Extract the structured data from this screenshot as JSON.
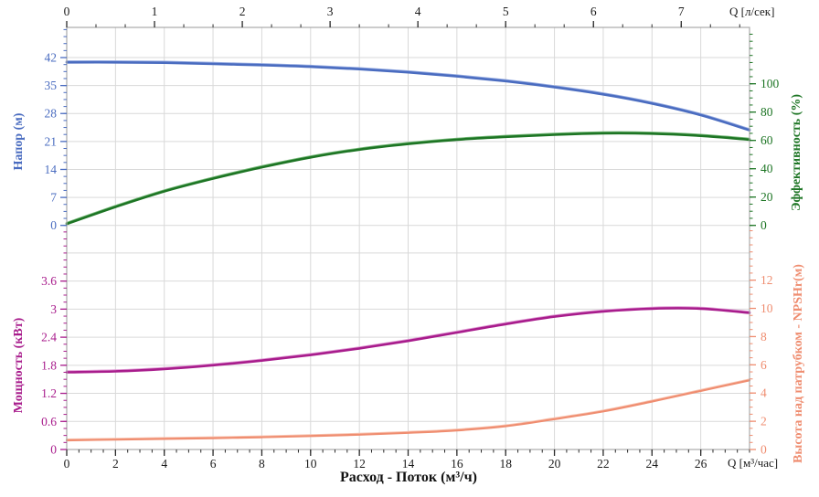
{
  "figure": {
    "background": "#ffffff",
    "grid_color": "#d9d9d9",
    "border_color": "#a9a9a9",
    "x_tick_color": "#2b2b2b"
  },
  "labels": {
    "q_top": "Q [л/сек]",
    "q_bottom": "Q [м³/час]",
    "x_title": "Расход - Поток (м³/ч)",
    "head_axis": "Напор (м)",
    "efficiency_axis": "Эффективность (%)",
    "power_axis": "Мощность (кВт)",
    "npsh_axis": "Высота над патрубком - NPSHr(м)"
  },
  "chart_data": {
    "type": "line",
    "x_axis_bottom": {
      "label": "Q [м³/час]",
      "title": "Расход - Поток (м³/ч)",
      "ticks": [
        0,
        2,
        4,
        6,
        8,
        10,
        12,
        14,
        16,
        18,
        20,
        22,
        24,
        26
      ],
      "minor_step": 0.5,
      "range": [
        0,
        28
      ],
      "unit": "м³/час"
    },
    "x_axis_top": {
      "label": "Q [л/сек]",
      "ticks": [
        0,
        1,
        2,
        3,
        4,
        5,
        6,
        7
      ],
      "minor_step": 0.3333,
      "range": [
        0,
        7.78
      ],
      "unit": "л/сек",
      "m3h_per_unit": 3.6
    },
    "panels": [
      {
        "name": "head-efficiency",
        "left_axis": {
          "label": "Напор (м)",
          "color": "#4a6cc0",
          "ticks": [
            0,
            7,
            14,
            21,
            28,
            35,
            42
          ],
          "minor_step": 1.75,
          "range": [
            0,
            49.55
          ]
        },
        "right_axis": {
          "label": "Эффективность (%)",
          "color": "#1d7524",
          "ticks": [
            0,
            20,
            40,
            60,
            80,
            100
          ],
          "minor_step": 5,
          "range": [
            0,
            139.8
          ]
        },
        "series": [
          {
            "id": "head-curve",
            "name": "Напор",
            "axis": "left",
            "color": "#4a6cc0",
            "highlight": "#93a9e0",
            "width": 2.6,
            "x": [
              0,
              2,
              4,
              6,
              8,
              10,
              12,
              14,
              16,
              18,
              20,
              22,
              24,
              26,
              28
            ],
            "y": [
              40.8,
              40.8,
              40.7,
              40.4,
              40.1,
              39.7,
              39.1,
              38.3,
              37.3,
              36.1,
              34.6,
              32.8,
              30.5,
              27.6,
              23.8
            ]
          },
          {
            "id": "efficiency-curve",
            "name": "Эффективность",
            "axis": "right",
            "color": "#1d7524",
            "highlight": "#74b877",
            "width": 2.6,
            "x": [
              0,
              2,
              4,
              6,
              8,
              10,
              12,
              14,
              16,
              18,
              20,
              22,
              24,
              26,
              28
            ],
            "y": [
              1,
              13,
              24,
              33,
              41,
              48,
              53.5,
              57.5,
              60.5,
              62.5,
              64,
              65,
              64.8,
              63.2,
              60.5
            ]
          }
        ]
      },
      {
        "name": "power-npsh",
        "left_axis": {
          "label": "Мощность (кВт)",
          "color": "#a81c8c",
          "ticks": [
            0,
            0.6,
            1.2,
            1.8,
            2.4,
            3,
            3.6
          ],
          "minor_step": 0.15,
          "range": [
            0,
            4.79
          ]
        },
        "right_axis": {
          "label": "Высота над патрубком - NPSHr(м)",
          "color": "#ef8d70",
          "ticks": [
            0,
            2,
            4,
            6,
            8,
            10,
            12
          ],
          "minor_step": 0.5,
          "range": [
            0,
            15.88
          ]
        },
        "series": [
          {
            "id": "power-curve",
            "name": "Мощность",
            "axis": "left",
            "color": "#a81c8c",
            "highlight": "#e09ad4",
            "width": 2.6,
            "x": [
              0,
              2,
              4,
              6,
              8,
              10,
              12,
              14,
              16,
              18,
              20,
              22,
              24,
              26,
              28
            ],
            "y": [
              1.65,
              1.67,
              1.72,
              1.8,
              1.9,
              2.02,
              2.16,
              2.32,
              2.5,
              2.68,
              2.84,
              2.95,
              3.01,
              3.01,
              2.92
            ]
          },
          {
            "id": "npsh-curve",
            "name": "NPSHr",
            "axis": "right",
            "color": "#ef8d70",
            "highlight": "#f8c3b0",
            "width": 2.2,
            "x": [
              0,
              2,
              4,
              6,
              8,
              10,
              12,
              14,
              16,
              18,
              20,
              22,
              24,
              26,
              28
            ],
            "y": [
              0.65,
              0.7,
              0.75,
              0.8,
              0.87,
              0.95,
              1.05,
              1.18,
              1.35,
              1.65,
              2.15,
              2.7,
              3.4,
              4.15,
              4.9
            ]
          }
        ]
      }
    ]
  }
}
